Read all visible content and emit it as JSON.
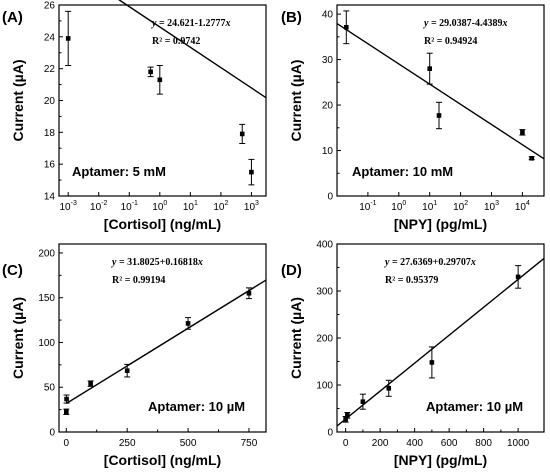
{
  "chart_data": [
    {
      "panel": "(A)",
      "type": "scatter",
      "xscale": "log",
      "xlim": [
        0.0005,
        3000
      ],
      "ylim": [
        14,
        26
      ],
      "xticks": [
        {
          "v": 0.001,
          "b": "10",
          "e": "-3"
        },
        {
          "v": 0.01,
          "b": "10",
          "e": "-2"
        },
        {
          "v": 0.1,
          "b": "10",
          "e": "-1"
        },
        {
          "v": 1,
          "b": "10",
          "e": "0"
        },
        {
          "v": 10,
          "b": "10",
          "e": "1"
        },
        {
          "v": 100,
          "b": "10",
          "e": "2"
        },
        {
          "v": 1000,
          "b": "10",
          "e": "3"
        }
      ],
      "yticks": [
        14,
        16,
        18,
        20,
        22,
        24,
        26
      ],
      "xlabel": "[Cortisol] (ng/mL)",
      "ylabel": "Current (µA)",
      "equation": "y = 24.621-1.2777x",
      "r2": "R² = 0.9742",
      "annotation": "Aptamer: 5 mM",
      "points": [
        {
          "x": 0.001,
          "y": 23.9,
          "err": 1.7
        },
        {
          "x": 0.5,
          "y": 21.8,
          "err": 0.3
        },
        {
          "x": 1,
          "y": 21.3,
          "err": 0.9
        },
        {
          "x": 500,
          "y": 17.9,
          "err": 0.6
        },
        {
          "x": 1000,
          "y": 15.5,
          "err": 0.8
        }
      ],
      "fit": {
        "intercept": 24.621,
        "slope": -1.2777,
        "xfun": "log10"
      }
    },
    {
      "panel": "(B)",
      "type": "scatter",
      "xscale": "log",
      "xlim": [
        0.01,
        50000
      ],
      "ylim": [
        0,
        42
      ],
      "xticks": [
        {
          "v": 0.1,
          "b": "10",
          "e": "-1"
        },
        {
          "v": 1,
          "b": "10",
          "e": "0"
        },
        {
          "v": 10,
          "b": "10",
          "e": "1"
        },
        {
          "v": 100,
          "b": "10",
          "e": "2"
        },
        {
          "v": 1000,
          "b": "10",
          "e": "3"
        },
        {
          "v": 10000,
          "b": "10",
          "e": "4"
        }
      ],
      "yticks": [
        0,
        10,
        20,
        30,
        40
      ],
      "xlabel": "[NPY] (pg/mL)",
      "ylabel": "Current (µA)",
      "equation": "y = 29.0387-4.4389x",
      "r2": "R² = 0.94924",
      "annotation": "Aptamer: 10 mM",
      "points": [
        {
          "x": 0.02,
          "y": 37.1,
          "err": 3.6
        },
        {
          "x": 10,
          "y": 28.0,
          "err": 3.4
        },
        {
          "x": 20,
          "y": 17.7,
          "err": 2.9
        },
        {
          "x": 10000,
          "y": 14.0,
          "err": 0.6
        },
        {
          "x": 20000,
          "y": 8.3,
          "err": 0.3
        }
      ],
      "fit": {
        "intercept": 29.0387,
        "slope": -4.4389,
        "xfun": "log10"
      }
    },
    {
      "panel": "(C)",
      "type": "scatter",
      "xscale": "linear",
      "xlim": [
        -30,
        820
      ],
      "ylim": [
        0,
        210
      ],
      "xticks": [
        0,
        250,
        500,
        750
      ],
      "yticks": [
        0,
        50,
        100,
        150,
        200
      ],
      "xlabel": "[Cortisol] (ng/mL)",
      "ylabel": "Current (µA)",
      "equation": "y = 31.8025+0.16818x",
      "r2": "R² = 0.99194",
      "annotation": "Aptamer: 10 µM",
      "points": [
        {
          "x": 0,
          "y": 22.6,
          "err": 3.0
        },
        {
          "x": 1,
          "y": 36.8,
          "err": 4.5
        },
        {
          "x": 100,
          "y": 54.0,
          "err": 3.0
        },
        {
          "x": 250,
          "y": 68.5,
          "err": 7.0
        },
        {
          "x": 500,
          "y": 121.3,
          "err": 6.5
        },
        {
          "x": 750,
          "y": 155.0,
          "err": 6.0
        }
      ],
      "fit": {
        "intercept": 31.8025,
        "slope": 0.16818,
        "xfun": "linear",
        "x0": 0,
        "x1": 820
      }
    },
    {
      "panel": "(D)",
      "type": "scatter",
      "xscale": "linear",
      "xlim": [
        -50,
        1150
      ],
      "ylim": [
        0,
        400
      ],
      "xticks": [
        0,
        200,
        400,
        600,
        800,
        1000
      ],
      "yticks": [
        0,
        100,
        200,
        300,
        400
      ],
      "xlabel": "[NPY] (pg/mL)",
      "ylabel": "Current (µA)",
      "equation": "y = 27.6369+0.29707x",
      "r2": "R² = 0.95379",
      "annotation": "Aptamer: 10 µM",
      "points": [
        {
          "x": 0,
          "y": 27.0,
          "err": 6.0
        },
        {
          "x": 10,
          "y": 35.5,
          "err": 6.0
        },
        {
          "x": 100,
          "y": 64.5,
          "err": 16.0
        },
        {
          "x": 250,
          "y": 93.0,
          "err": 17.0
        },
        {
          "x": 500,
          "y": 148.0,
          "err": 33.0
        },
        {
          "x": 1000,
          "y": 330.0,
          "err": 24.0
        }
      ],
      "fit": {
        "intercept": 27.6369,
        "slope": 0.29707,
        "xfun": "linear",
        "x0": -50,
        "x1": 1150
      }
    }
  ]
}
